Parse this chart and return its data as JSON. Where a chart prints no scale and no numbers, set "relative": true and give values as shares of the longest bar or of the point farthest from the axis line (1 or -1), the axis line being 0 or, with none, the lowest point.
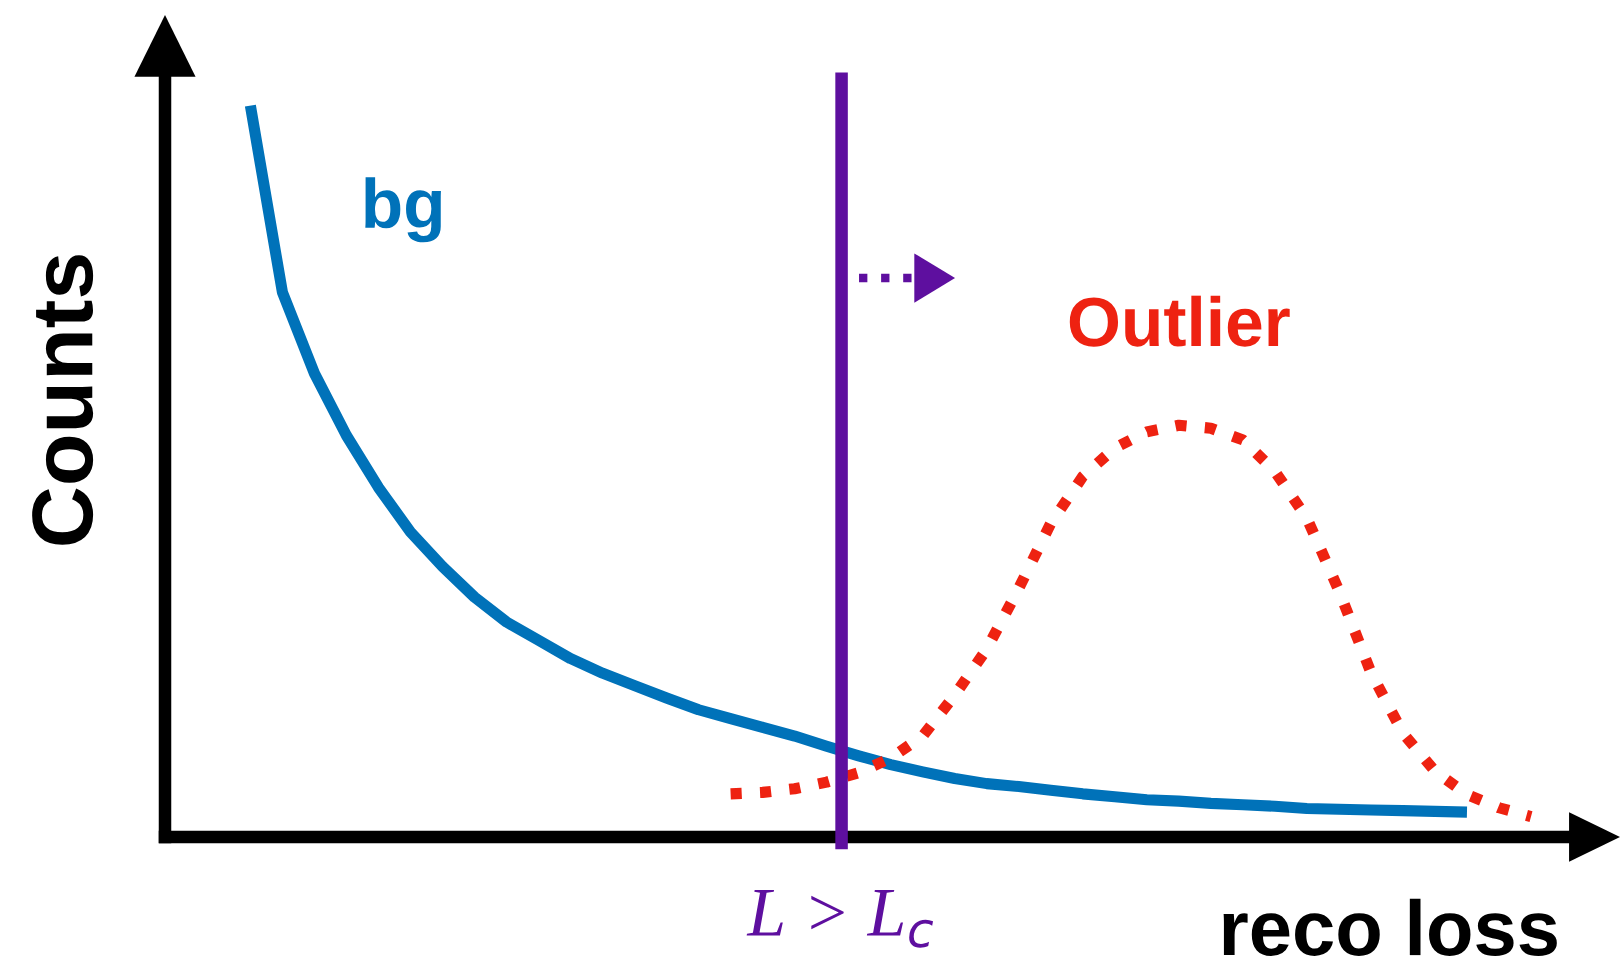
{
  "chart_data": {
    "type": "line",
    "relative": true,
    "xlabel": "reco loss",
    "ylabel": "Counts",
    "legend": false,
    "line_style": "solid",
    "categories": [
      null,
      null,
      null,
      null,
      null,
      null,
      null,
      null,
      null,
      null,
      null,
      null,
      null,
      null,
      null,
      null,
      null,
      null,
      null,
      null,
      null,
      null,
      null,
      null,
      null,
      null,
      null,
      null,
      null,
      null,
      null,
      null,
      null,
      null,
      null,
      null,
      null,
      null,
      null,
      null,
      null
    ],
    "series": [
      {
        "name": "bg",
        "color": "#0072b9",
        "values": [
          1.0,
          0.745,
          0.634,
          0.549,
          0.478,
          0.417,
          0.37,
          0.328,
          0.294,
          0.269,
          0.244,
          0.224,
          0.207,
          0.19,
          0.174,
          0.162,
          0.15,
          0.138,
          0.124,
          0.111,
          0.099,
          0.089,
          0.08,
          0.073,
          0.069,
          0.064,
          0.059,
          0.055,
          0.051,
          0.049,
          0.046,
          0.044,
          0.042,
          0.039,
          0.038,
          0.037,
          0.036,
          0.035,
          0.034,
          null,
          null
        ]
      },
      {
        "name": "Outlier",
        "color": "#ee2211",
        "line_style": "dotted",
        "values": [
          null,
          null,
          null,
          null,
          null,
          null,
          null,
          null,
          null,
          null,
          null,
          null,
          null,
          null,
          null,
          0.059,
          0.061,
          0.066,
          0.075,
          0.088,
          0.108,
          0.138,
          0.194,
          0.257,
          0.34,
          0.429,
          0.493,
          0.532,
          0.554,
          0.563,
          0.559,
          0.543,
          0.5,
          0.436,
          0.337,
          0.225,
          0.142,
          0.09,
          0.058,
          0.04,
          0.028
        ]
      }
    ],
    "annotations": [
      "L > L$_{c}$"
    ]
  }
}
